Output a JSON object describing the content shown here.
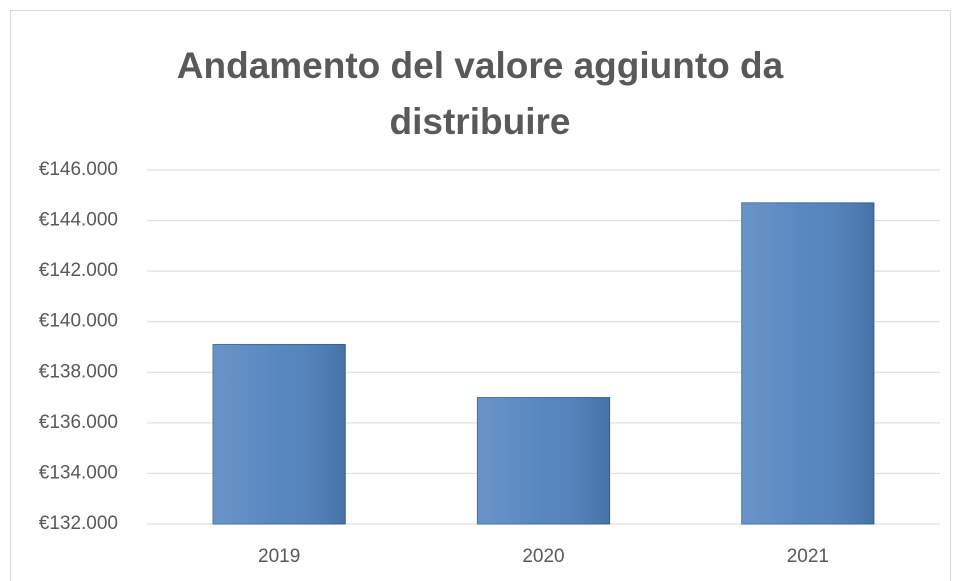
{
  "chart_data": {
    "type": "bar",
    "title": "Andamento del valore aggiunto da distribuire",
    "categories": [
      "2019",
      "2020",
      "2021"
    ],
    "values": [
      139100,
      137000,
      144700
    ],
    "color": "#4f81bd",
    "ylim": [
      132000,
      146000
    ],
    "yticks": [
      {
        "value": 132000,
        "label": "€132.000"
      },
      {
        "value": 134000,
        "label": "€134.000"
      },
      {
        "value": 136000,
        "label": "€136.000"
      },
      {
        "value": 138000,
        "label": "€138.000"
      },
      {
        "value": 140000,
        "label": "€140.000"
      },
      {
        "value": 142000,
        "label": "€142.000"
      },
      {
        "value": 144000,
        "label": "€144.000"
      },
      {
        "value": 146000,
        "label": "€146.000"
      }
    ],
    "grid": true
  }
}
